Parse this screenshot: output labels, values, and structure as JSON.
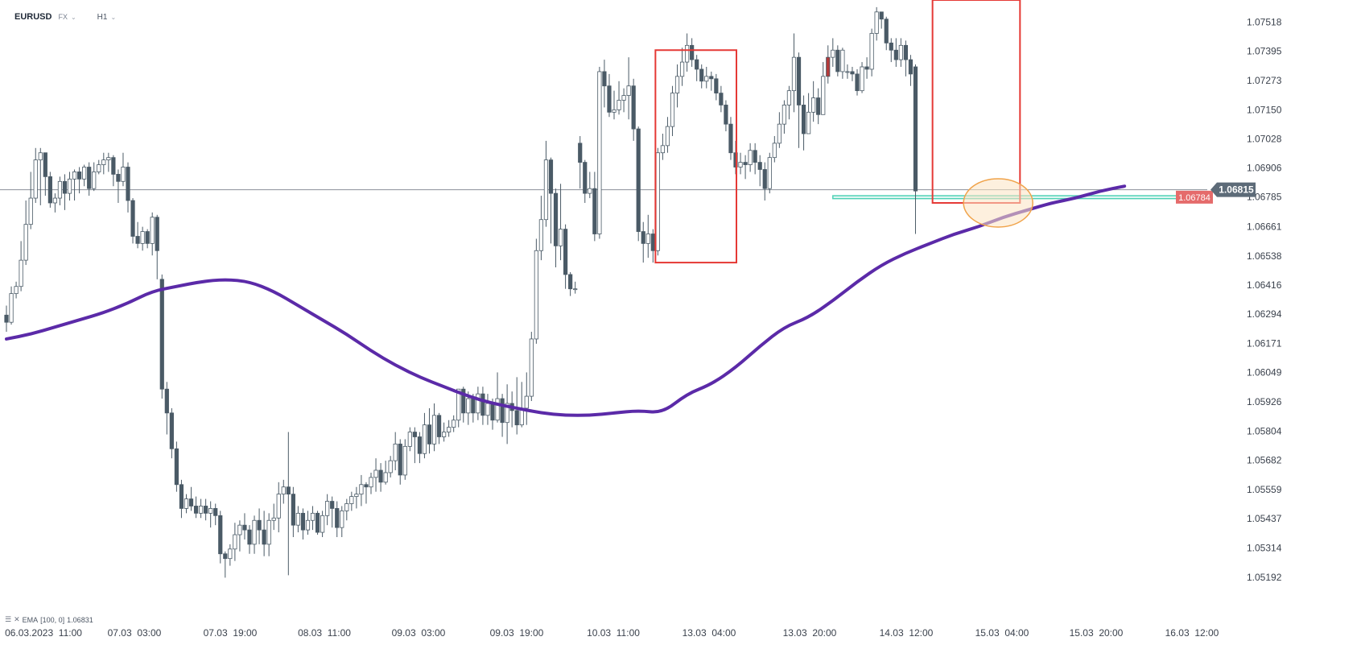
{
  "header": {
    "symbol": "EURUSD",
    "market": "FX",
    "timeframe": "H1"
  },
  "indicator": {
    "label": "EMA",
    "params": "[100, 0]",
    "value": "1.06831"
  },
  "colors": {
    "bull_candle": "#ffffff",
    "bear_candle": "#4a5a66",
    "candle_outline": "#4a5a66",
    "ema_line": "#5b2aa8",
    "highlight_box": "#e53935",
    "support_zone": "#4fd1b5",
    "circle_fill": "#fbe3c2",
    "circle_stroke": "#f0a34a",
    "price_tag_current": "#5d6b78",
    "price_tag_level": "#e56b6b"
  },
  "chart_data": {
    "type": "candlestick",
    "ylim": [
      1.0508,
      1.0761
    ],
    "y_ticks": [
      "1.07518",
      "1.07395",
      "1.07273",
      "1.07150",
      "1.07028",
      "1.06906",
      "1.06785",
      "1.06661",
      "1.06538",
      "1.06416",
      "1.06294",
      "1.06171",
      "1.06049",
      "1.05926",
      "1.05804",
      "1.05682",
      "1.05559",
      "1.05437",
      "1.05314",
      "1.05192"
    ],
    "x_labels": [
      "06.03.2023  11:00",
      "07.03  03:00",
      "07.03  19:00",
      "08.03  11:00",
      "09.03  03:00",
      "09.03  19:00",
      "10.03  11:00",
      "13.03  04:00",
      "13.03  20:00",
      "14.03  12:00",
      "15.03  04:00",
      "15.03  20:00",
      "16.03  12:00"
    ],
    "current_price": "1.06815",
    "marked_level": "1.06784",
    "candles": [
      [
        1.0629,
        1.0626,
        1.0633,
        1.0622
      ],
      [
        1.0626,
        1.0638,
        1.0641,
        1.0625
      ],
      [
        1.0638,
        1.0641,
        1.0643,
        1.0636
      ],
      [
        1.0641,
        1.0652,
        1.066,
        1.0639
      ],
      [
        1.0652,
        1.0667,
        1.0677,
        1.065
      ],
      [
        1.0667,
        1.0678,
        1.0689,
        1.0665
      ],
      [
        1.0678,
        1.0694,
        1.0699,
        1.0676
      ],
      [
        1.0694,
        1.0697,
        1.0699,
        1.0675
      ],
      [
        1.0697,
        1.0687,
        1.0697,
        1.0679
      ],
      [
        1.0687,
        1.0676,
        1.0689,
        1.0674
      ],
      [
        1.0676,
        1.0678,
        1.068,
        1.0672
      ],
      [
        1.0678,
        1.0685,
        1.0687,
        1.0675
      ],
      [
        1.0685,
        1.068,
        1.0688,
        1.0673
      ],
      [
        1.068,
        1.0686,
        1.0689,
        1.0677
      ],
      [
        1.0686,
        1.0689,
        1.069,
        1.0677
      ],
      [
        1.0689,
        1.0686,
        1.0691,
        1.068
      ],
      [
        1.0686,
        1.0691,
        1.0692,
        1.0683
      ],
      [
        1.0691,
        1.0682,
        1.0693,
        1.0679
      ],
      [
        1.0682,
        1.0689,
        1.0693,
        1.0681
      ],
      [
        1.0689,
        1.0692,
        1.0694,
        1.0688
      ],
      [
        1.0692,
        1.0694,
        1.0697,
        1.0688
      ],
      [
        1.0694,
        1.0695,
        1.0697,
        1.0689
      ],
      [
        1.0695,
        1.0688,
        1.0696,
        1.0683
      ],
      [
        1.0688,
        1.0685,
        1.069,
        1.0676
      ],
      [
        1.0685,
        1.0691,
        1.0697,
        1.0683
      ],
      [
        1.0691,
        1.0677,
        1.0693,
        1.0672
      ],
      [
        1.0677,
        1.0662,
        1.0678,
        1.0659
      ],
      [
        1.0662,
        1.0659,
        1.0668,
        1.0657
      ],
      [
        1.0659,
        1.0664,
        1.0666,
        1.0656
      ],
      [
        1.0664,
        1.0659,
        1.0665,
        1.0657
      ],
      [
        1.0659,
        1.067,
        1.0672,
        1.0654
      ],
      [
        1.067,
        1.0656,
        1.0671,
        1.0644
      ],
      [
        1.0644,
        1.0598,
        1.0646,
        1.0594
      ],
      [
        1.0598,
        1.0588,
        1.0601,
        1.0579
      ],
      [
        1.0588,
        1.0573,
        1.059,
        1.0569
      ],
      [
        1.0573,
        1.0558,
        1.0576,
        1.0555
      ],
      [
        1.0558,
        1.0548,
        1.056,
        1.0544
      ],
      [
        1.0548,
        1.0552,
        1.0554,
        1.0546
      ],
      [
        1.0552,
        1.0549,
        1.0557,
        1.0547
      ],
      [
        1.0549,
        1.0546,
        1.0553,
        1.0544
      ],
      [
        1.0546,
        1.0549,
        1.0552,
        1.0544
      ],
      [
        1.0549,
        1.0546,
        1.0552,
        1.0543
      ],
      [
        1.0546,
        1.0548,
        1.0551,
        1.054
      ],
      [
        1.0548,
        1.0545,
        1.055,
        1.0541
      ],
      [
        1.0545,
        1.0529,
        1.0547,
        1.0525
      ],
      [
        1.0529,
        1.0527,
        1.053,
        1.0519
      ],
      [
        1.0527,
        1.0531,
        1.0533,
        1.0524
      ],
      [
        1.0531,
        1.0537,
        1.0542,
        1.0526
      ],
      [
        1.0537,
        1.0541,
        1.0543,
        1.053
      ],
      [
        1.0541,
        1.0539,
        1.0546,
        1.0535
      ],
      [
        1.0539,
        1.0533,
        1.0541,
        1.0529
      ],
      [
        1.0533,
        1.0543,
        1.0545,
        1.0529
      ],
      [
        1.0543,
        1.0539,
        1.0548,
        1.0533
      ],
      [
        1.0539,
        1.0533,
        1.0547,
        1.0528
      ],
      [
        1.0533,
        1.0543,
        1.0546,
        1.0528
      ],
      [
        1.0543,
        1.0544,
        1.055,
        1.0539
      ],
      [
        1.0544,
        1.0554,
        1.0559,
        1.0538
      ],
      [
        1.0554,
        1.0557,
        1.056,
        1.055
      ],
      [
        1.0557,
        1.0554,
        1.058,
        1.052
      ],
      [
        1.0554,
        1.0541,
        1.0557,
        1.0536
      ],
      [
        1.0541,
        1.0546,
        1.0549,
        1.0538
      ],
      [
        1.0546,
        1.0539,
        1.0548,
        1.0535
      ],
      [
        1.0539,
        1.0543,
        1.0547,
        1.0537
      ],
      [
        1.0543,
        1.0546,
        1.0549,
        1.0539
      ],
      [
        1.0546,
        1.0538,
        1.0547,
        1.0537
      ],
      [
        1.0538,
        1.0545,
        1.0547,
        1.0536
      ],
      [
        1.0545,
        1.0551,
        1.0554,
        1.0541
      ],
      [
        1.0551,
        1.0548,
        1.0553,
        1.054
      ],
      [
        1.0548,
        1.054,
        1.0551,
        1.0536
      ],
      [
        1.054,
        1.0547,
        1.0549,
        1.0536
      ],
      [
        1.0547,
        1.055,
        1.0552,
        1.0543
      ],
      [
        1.055,
        1.0553,
        1.0555,
        1.0547
      ],
      [
        1.0553,
        1.0554,
        1.0557,
        1.0548
      ],
      [
        1.0554,
        1.0558,
        1.0562,
        1.0549
      ],
      [
        1.0558,
        1.0557,
        1.0559,
        1.055
      ],
      [
        1.0557,
        1.0561,
        1.0563,
        1.0554
      ],
      [
        1.0561,
        1.0564,
        1.0569,
        1.0555
      ],
      [
        1.0564,
        1.0559,
        1.0567,
        1.0555
      ],
      [
        1.0559,
        1.0563,
        1.0568,
        1.0558
      ],
      [
        1.0563,
        1.0568,
        1.057,
        1.0561
      ],
      [
        1.0568,
        1.0575,
        1.058,
        1.0564
      ],
      [
        1.0575,
        1.0562,
        1.0577,
        1.0558
      ],
      [
        1.0562,
        1.0574,
        1.0577,
        1.056
      ],
      [
        1.0574,
        1.058,
        1.0582,
        1.0572
      ],
      [
        1.058,
        1.0578,
        1.0582,
        1.0567
      ],
      [
        1.0578,
        1.0571,
        1.058,
        1.0567
      ],
      [
        1.0571,
        1.0583,
        1.0588,
        1.0569
      ],
      [
        1.0583,
        1.0575,
        1.059,
        1.0571
      ],
      [
        1.0575,
        1.0587,
        1.0592,
        1.0572
      ],
      [
        1.0587,
        1.0578,
        1.0588,
        1.0575
      ],
      [
        1.0578,
        1.058,
        1.0584,
        1.0576
      ],
      [
        1.058,
        1.0582,
        1.0585,
        1.0578
      ],
      [
        1.0582,
        1.0585,
        1.0587,
        1.058
      ],
      [
        1.0585,
        1.0598,
        1.0598,
        1.0582
      ],
      [
        1.0598,
        1.0588,
        1.0599,
        1.0584
      ],
      [
        1.0588,
        1.0594,
        1.0597,
        1.0583
      ],
      [
        1.0594,
        1.0588,
        1.0596,
        1.0584
      ],
      [
        1.0588,
        1.0596,
        1.0599,
        1.0585
      ],
      [
        1.0596,
        1.0587,
        1.0599,
        1.0583
      ],
      [
        1.0587,
        1.0592,
        1.0596,
        1.0583
      ],
      [
        1.0592,
        1.0585,
        1.0594,
        1.0581
      ],
      [
        1.0585,
        1.0594,
        1.0605,
        1.0584
      ],
      [
        1.0594,
        1.0584,
        1.0596,
        1.0578
      ],
      [
        1.0584,
        1.0592,
        1.06,
        1.0575
      ],
      [
        1.0592,
        1.0589,
        1.0597,
        1.0582
      ],
      [
        1.0589,
        1.0583,
        1.0603,
        1.0579
      ],
      [
        1.0583,
        1.059,
        1.0601,
        1.0582
      ],
      [
        1.059,
        1.0595,
        1.0605,
        1.0583
      ],
      [
        1.0595,
        1.0619,
        1.0622,
        1.0593
      ],
      [
        1.0619,
        1.0656,
        1.0661,
        1.0617
      ],
      [
        1.0656,
        1.0669,
        1.0679,
        1.0652
      ],
      [
        1.0669,
        1.0694,
        1.0702,
        1.0666
      ],
      [
        1.0694,
        1.068,
        1.0695,
        1.0659
      ],
      [
        1.068,
        1.0658,
        1.0682,
        1.0649
      ],
      [
        1.0658,
        1.0665,
        1.0684,
        1.0652
      ],
      [
        1.0665,
        1.0646,
        1.0667,
        1.064
      ],
      [
        1.0646,
        1.064,
        1.0647,
        1.0637
      ],
      [
        1.064,
        1.064,
        1.0643,
        1.0638
      ],
      [
        1.0701,
        1.0693,
        1.0704,
        1.0682
      ],
      [
        1.0693,
        1.068,
        1.0694,
        1.0676
      ],
      [
        1.068,
        1.0682,
        1.0689,
        1.0678
      ],
      [
        1.0682,
        1.0663,
        1.0689,
        1.066
      ],
      [
        1.0663,
        1.0731,
        1.0733,
        1.0661
      ],
      [
        1.0731,
        1.0725,
        1.0736,
        1.0716
      ],
      [
        1.0725,
        1.0714,
        1.073,
        1.0712
      ],
      [
        1.0714,
        1.0715,
        1.0723,
        1.0711
      ],
      [
        1.0715,
        1.0719,
        1.0727,
        1.0713
      ],
      [
        1.0719,
        1.0721,
        1.0724,
        1.0714
      ],
      [
        1.0721,
        1.0725,
        1.0737,
        1.0711
      ],
      [
        1.0725,
        1.0707,
        1.0728,
        1.0702
      ],
      [
        1.0707,
        1.0664,
        1.0708,
        1.066
      ],
      [
        1.0664,
        1.0659,
        1.0668,
        1.0651
      ],
      [
        1.0659,
        1.0663,
        1.0671,
        1.0653
      ],
      [
        1.0663,
        1.0656,
        1.0665,
        1.0651
      ],
      [
        1.0656,
        1.0697,
        1.0699,
        1.0654
      ],
      [
        1.0697,
        1.07,
        1.0705,
        1.0694
      ],
      [
        1.07,
        1.0708,
        1.0712,
        1.0697
      ],
      [
        1.0708,
        1.0722,
        1.0725,
        1.0704
      ],
      [
        1.0722,
        1.0729,
        1.0734,
        1.0716
      ],
      [
        1.0729,
        1.0735,
        1.0741,
        1.0725
      ],
      [
        1.0735,
        1.0742,
        1.0747,
        1.0731
      ],
      [
        1.0742,
        1.0736,
        1.0745,
        1.0733
      ],
      [
        1.0736,
        1.0732,
        1.0738,
        1.0727
      ],
      [
        1.0732,
        1.0727,
        1.0734,
        1.0724
      ],
      [
        1.0727,
        1.0729,
        1.0733,
        1.0724
      ],
      [
        1.0729,
        1.0728,
        1.0731,
        1.0723
      ],
      [
        1.0728,
        1.0722,
        1.073,
        1.0719
      ],
      [
        1.0722,
        1.0717,
        1.0725,
        1.0714
      ],
      [
        1.0717,
        1.0709,
        1.0719,
        1.0706
      ],
      [
        1.0709,
        1.0697,
        1.0712,
        1.0694
      ],
      [
        1.0697,
        1.0691,
        1.0702,
        1.0688
      ],
      [
        1.0691,
        1.0693,
        1.0697,
        1.0688
      ],
      [
        1.0693,
        1.0692,
        1.0696,
        1.0686
      ],
      [
        1.0692,
        1.0698,
        1.0701,
        1.0689
      ],
      [
        1.0698,
        1.0693,
        1.0701,
        1.0688
      ],
      [
        1.0693,
        1.069,
        1.0696,
        1.0683
      ],
      [
        1.069,
        1.0682,
        1.0693,
        1.0677
      ],
      [
        1.0682,
        1.0695,
        1.0697,
        1.068
      ],
      [
        1.0695,
        1.0701,
        1.0704,
        1.0693
      ],
      [
        1.0701,
        1.0709,
        1.0714,
        1.0699
      ],
      [
        1.0709,
        1.0717,
        1.0719,
        1.0705
      ],
      [
        1.0717,
        1.0723,
        1.0725,
        1.0711
      ],
      [
        1.0723,
        1.0737,
        1.0747,
        1.0714
      ],
      [
        1.0737,
        1.0717,
        1.0739,
        1.0699
      ],
      [
        1.0717,
        1.0705,
        1.0721,
        1.0698
      ],
      [
        1.0705,
        1.0714,
        1.0722,
        1.0705
      ],
      [
        1.0714,
        1.072,
        1.0727,
        1.071
      ],
      [
        1.072,
        1.0713,
        1.0724,
        1.0709
      ],
      [
        1.0713,
        1.0729,
        1.0735,
        1.0713
      ],
      [
        1.0729,
        1.0737,
        1.0742,
        1.0726
      ],
      [
        1.0737,
        1.074,
        1.0745,
        1.0733
      ],
      [
        1.074,
        1.0731,
        1.0742,
        1.0729
      ],
      [
        1.0731,
        1.074,
        1.0741,
        1.0728
      ],
      [
        1.0731,
        1.0731,
        1.0734,
        1.0728
      ],
      [
        1.0731,
        1.073,
        1.0733,
        1.0727
      ],
      [
        1.073,
        1.0723,
        1.0732,
        1.0721
      ],
      [
        1.0723,
        1.0733,
        1.0735,
        1.0722
      ],
      [
        1.0733,
        1.0732,
        1.0737,
        1.0728
      ],
      [
        1.0732,
        1.0747,
        1.0749,
        1.0729
      ],
      [
        1.0747,
        1.0756,
        1.0758,
        1.0744
      ],
      [
        1.0756,
        1.0753,
        1.0756,
        1.0749
      ],
      [
        1.0753,
        1.0743,
        1.0754,
        1.074
      ],
      [
        1.0743,
        1.074,
        1.0745,
        1.0735
      ],
      [
        1.074,
        1.0736,
        1.0745,
        1.0733
      ],
      [
        1.0736,
        1.0742,
        1.0745,
        1.0733
      ],
      [
        1.0742,
        1.0736,
        1.0744,
        1.0729
      ],
      [
        1.0736,
        1.073,
        1.0738,
        1.0725
      ],
      [
        1.0733,
        1.0681,
        1.0734,
        1.0663
      ]
    ],
    "ema": {
      "name": "EMA [100, 0]",
      "points": [
        [
          0,
          1.0619
        ],
        [
          5,
          1.0621
        ],
        [
          10,
          1.0624
        ],
        [
          15,
          1.0627
        ],
        [
          20,
          1.063
        ],
        [
          25,
          1.0634
        ],
        [
          30,
          1.0639
        ],
        [
          35,
          1.0641
        ],
        [
          40,
          1.0643
        ],
        [
          45,
          1.0644
        ],
        [
          50,
          1.0643
        ],
        [
          55,
          1.0639
        ],
        [
          60,
          1.0633
        ],
        [
          65,
          1.0627
        ],
        [
          70,
          1.0621
        ],
        [
          75,
          1.0614
        ],
        [
          80,
          1.0608
        ],
        [
          85,
          1.0603
        ],
        [
          90,
          1.0599
        ],
        [
          95,
          1.0595
        ],
        [
          100,
          1.0592
        ],
        [
          105,
          1.059
        ],
        [
          110,
          1.0588
        ],
        [
          115,
          1.0587
        ],
        [
          120,
          1.0587
        ],
        [
          125,
          1.0588
        ],
        [
          130,
          1.0589
        ],
        [
          135,
          1.0588
        ],
        [
          140,
          1.0596
        ],
        [
          145,
          1.06
        ],
        [
          150,
          1.0607
        ],
        [
          155,
          1.0616
        ],
        [
          160,
          1.0624
        ],
        [
          165,
          1.0628
        ],
        [
          170,
          1.0635
        ],
        [
          175,
          1.0643
        ],
        [
          180,
          1.065
        ],
        [
          185,
          1.0655
        ],
        [
          190,
          1.0659
        ],
        [
          195,
          1.0663
        ],
        [
          200,
          1.0666
        ],
        [
          205,
          1.067
        ],
        [
          210,
          1.0673
        ],
        [
          215,
          1.0676
        ],
        [
          220,
          1.0678
        ],
        [
          225,
          1.0681
        ],
        [
          230,
          1.0683
        ]
      ]
    }
  }
}
